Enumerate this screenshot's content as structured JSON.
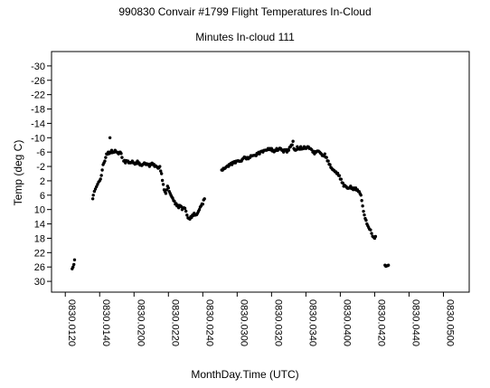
{
  "chart_data": {
    "type": "scatter",
    "title": "990830 Convair #1799 Flight Temperatures In-Cloud",
    "subtitle": "Minutes In-cloud 111",
    "xlabel": "MonthDay.Time (UTC)",
    "ylabel": "Temp (deg C)",
    "y_inverted": true,
    "ylim": [
      -34,
      33
    ],
    "xlim_minutes_utc": [
      72,
      315
    ],
    "x_ticks": [
      {
        "label": "0830.0120",
        "minutes": 80
      },
      {
        "label": "0830.0140",
        "minutes": 100
      },
      {
        "label": "0830.0200",
        "minutes": 120
      },
      {
        "label": "0830.0220",
        "minutes": 140
      },
      {
        "label": "0830.0240",
        "minutes": 160
      },
      {
        "label": "0830.0300",
        "minutes": 180
      },
      {
        "label": "0830.0320",
        "minutes": 200
      },
      {
        "label": "0830.0340",
        "minutes": 220
      },
      {
        "label": "0830.0400",
        "minutes": 240
      },
      {
        "label": "0830.0420",
        "minutes": 260
      },
      {
        "label": "0830.0440",
        "minutes": 280
      },
      {
        "label": "0830.0500",
        "minutes": 300
      }
    ],
    "y_ticks": [
      {
        "label": "-30",
        "value": -30
      },
      {
        "label": "-26",
        "value": -26
      },
      {
        "label": "-22",
        "value": -22
      },
      {
        "label": "-18",
        "value": -18
      },
      {
        "label": "-14",
        "value": -14
      },
      {
        "label": "-10",
        "value": -10
      },
      {
        "label": "-6",
        "value": -6
      },
      {
        "label": "-2",
        "value": -2
      },
      {
        "label": "2",
        "value": 2
      },
      {
        "label": "6",
        "value": 6
      },
      {
        "label": "10",
        "value": 10
      },
      {
        "label": "14",
        "value": 14
      },
      {
        "label": "18",
        "value": 18
      },
      {
        "label": "22",
        "value": 22
      },
      {
        "label": "26",
        "value": 26
      },
      {
        "label": "30",
        "value": 30
      }
    ],
    "grid": false,
    "series": [
      {
        "values": [
          [
            84.0,
            26.5
          ],
          [
            84.5,
            26.0
          ],
          [
            85.0,
            25.3
          ],
          [
            85.4,
            24.0
          ],
          [
            96.0,
            7.0
          ],
          [
            96.3,
            6.0
          ],
          [
            100.0,
            2.0
          ],
          [
            100.5,
            1.5
          ],
          [
            101.0,
            0.5
          ],
          [
            101.5,
            -1.0
          ],
          [
            102.0,
            -2.5
          ],
          [
            102.5,
            -3.0
          ],
          [
            103.0,
            -3.5
          ],
          [
            103.5,
            -4.5
          ],
          [
            104.0,
            -5.5
          ],
          [
            105.0,
            -6.0
          ],
          [
            106.0,
            -6.0
          ],
          [
            107.0,
            -6.5
          ],
          [
            108.0,
            -6.0
          ],
          [
            109.0,
            -6.5
          ],
          [
            110.0,
            -6.0
          ],
          [
            111.0,
            -5.5
          ],
          [
            112.0,
            -6.0
          ],
          [
            113.0,
            -4.5
          ],
          [
            106.0,
            -10.0
          ],
          [
            114.0,
            -3.5
          ],
          [
            115.0,
            -3.0
          ],
          [
            116.0,
            -3.5
          ],
          [
            117.0,
            -3.0
          ],
          [
            118.0,
            -3.0
          ],
          [
            119.0,
            -3.5
          ],
          [
            120.0,
            -3.0
          ],
          [
            121.0,
            -3.0
          ],
          [
            122.0,
            -3.5
          ],
          [
            123.0,
            -3.0
          ],
          [
            124.0,
            -2.5
          ],
          [
            125.0,
            -2.5
          ],
          [
            126.0,
            -3.0
          ],
          [
            127.0,
            -2.5
          ],
          [
            128.0,
            -2.5
          ],
          [
            129.0,
            -2.0
          ],
          [
            130.0,
            -2.5
          ],
          [
            131.0,
            -2.5
          ],
          [
            132.0,
            -2.0
          ],
          [
            133.0,
            -2.0
          ],
          [
            134.0,
            -1.5
          ],
          [
            135.0,
            -2.0
          ],
          [
            136.0,
            0.0
          ],
          [
            137.0,
            3.0
          ],
          [
            137.5,
            4.5
          ],
          [
            138.0,
            5.0
          ],
          [
            138.5,
            5.5
          ],
          [
            139.0,
            4.5
          ],
          [
            139.5,
            3.5
          ],
          [
            140.0,
            4.0
          ],
          [
            141.0,
            5.5
          ],
          [
            142.0,
            6.5
          ],
          [
            143.0,
            7.5
          ],
          [
            144.0,
            8.5
          ],
          [
            145.0,
            9.0
          ],
          [
            146.0,
            9.5
          ],
          [
            147.0,
            9.0
          ],
          [
            148.0,
            10.0
          ],
          [
            149.0,
            9.5
          ],
          [
            152.0,
            12.5
          ],
          [
            153.0,
            12.0
          ],
          [
            154.0,
            11.5
          ],
          [
            155.0,
            11.0
          ],
          [
            156.0,
            11.5
          ],
          [
            157.0,
            11.0
          ],
          [
            158.0,
            10.0
          ],
          [
            159.0,
            9.0
          ],
          [
            160.0,
            8.5
          ],
          [
            161.0,
            7.0
          ],
          [
            171.0,
            -1.0
          ],
          [
            172.0,
            -1.5
          ],
          [
            173.0,
            -1.5
          ],
          [
            174.0,
            -2.0
          ],
          [
            175.0,
            -2.0
          ],
          [
            176.0,
            -2.5
          ],
          [
            177.0,
            -2.5
          ],
          [
            178.0,
            -3.0
          ],
          [
            179.0,
            -3.0
          ],
          [
            180.0,
            -3.5
          ],
          [
            181.0,
            -3.5
          ],
          [
            182.0,
            -3.5
          ],
          [
            183.0,
            -4.0
          ],
          [
            186.0,
            -4.5
          ],
          [
            187.0,
            -4.5
          ],
          [
            188.0,
            -5.0
          ],
          [
            189.0,
            -5.0
          ],
          [
            191.0,
            -5.0
          ],
          [
            192.0,
            -5.5
          ],
          [
            193.0,
            -5.5
          ],
          [
            195.0,
            -6.0
          ],
          [
            196.0,
            -6.5
          ],
          [
            197.0,
            -6.5
          ],
          [
            198.0,
            -7.0
          ],
          [
            199.0,
            -7.0
          ],
          [
            200.0,
            -7.0
          ],
          [
            201.0,
            -6.5
          ],
          [
            202.0,
            -6.5
          ],
          [
            203.0,
            -7.0
          ],
          [
            206.0,
            -6.5
          ],
          [
            207.0,
            -6.0
          ],
          [
            208.0,
            -6.5
          ],
          [
            209.0,
            -6.0
          ],
          [
            210.0,
            -6.5
          ],
          [
            211.0,
            -7.5
          ],
          [
            212.0,
            -8.0
          ],
          [
            212.5,
            -9.0
          ],
          [
            213.0,
            -7.0
          ],
          [
            214.0,
            -6.5
          ],
          [
            215.0,
            -7.5
          ],
          [
            216.0,
            -7.0
          ],
          [
            217.0,
            -7.5
          ],
          [
            218.0,
            -7.0
          ],
          [
            219.0,
            -7.5
          ],
          [
            220.0,
            -7.0
          ],
          [
            221.0,
            -7.5
          ],
          [
            222.0,
            -7.0
          ],
          [
            224.0,
            -6.0
          ],
          [
            225.0,
            -5.5
          ],
          [
            226.0,
            -6.0
          ],
          [
            228.0,
            -6.0
          ],
          [
            229.0,
            -5.5
          ],
          [
            230.0,
            -5.0
          ],
          [
            231.0,
            -5.5
          ],
          [
            232.0,
            -4.5
          ],
          [
            233.0,
            -3.5
          ],
          [
            234.0,
            -2.5
          ],
          [
            235.0,
            -1.5
          ],
          [
            236.0,
            -1.0
          ],
          [
            237.0,
            -0.5
          ],
          [
            238.0,
            0.0
          ],
          [
            239.0,
            0.5
          ],
          [
            240.0,
            1.5
          ],
          [
            241.0,
            2.5
          ],
          [
            242.0,
            3.5
          ],
          [
            243.0,
            3.5
          ],
          [
            244.0,
            4.0
          ],
          [
            245.0,
            4.0
          ],
          [
            246.0,
            3.5
          ],
          [
            247.0,
            4.0
          ],
          [
            248.0,
            4.0
          ],
          [
            249.0,
            4.0
          ],
          [
            250.0,
            4.5
          ],
          [
            251.0,
            5.0
          ],
          [
            252.0,
            6.0
          ],
          [
            252.5,
            7.5
          ],
          [
            253.0,
            9.0
          ],
          [
            253.5,
            10.5
          ],
          [
            254.0,
            11.5
          ],
          [
            254.5,
            12.5
          ],
          [
            255.0,
            13.0
          ],
          [
            255.5,
            14.0
          ],
          [
            256.0,
            14.5
          ],
          [
            256.5,
            15.0
          ],
          [
            257.0,
            15.5
          ],
          [
            260.0,
            18.0
          ],
          [
            260.5,
            17.5
          ],
          [
            266.0,
            25.5
          ],
          [
            267.0,
            25.7
          ],
          [
            268.0,
            25.5
          ]
        ]
      }
    ]
  }
}
